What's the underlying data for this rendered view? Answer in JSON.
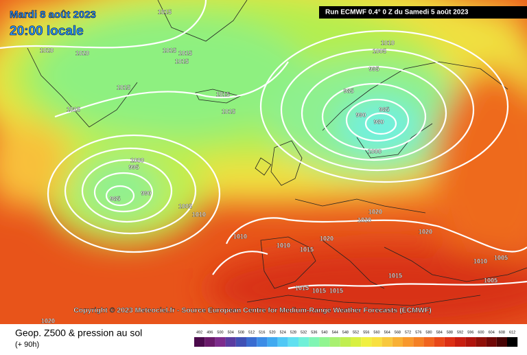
{
  "header": {
    "date": "Mardi 8 août 2023",
    "time": "20:00 locale",
    "run": "Run ECMWF 0.4° 0 Z du Samedi 5 août 2023"
  },
  "copyright": "Copyright © 2023 Meteociel.fr - Source European Centre for Medium-Range Weather Forecasts (ECMWF)",
  "footer": {
    "title": "Geop. Z500 & pression au sol",
    "lead": "(+ 90h)"
  },
  "isobar_labels": [
    1015,
    1020,
    1020,
    1015,
    1015,
    1015,
    1015,
    1015,
    1015,
    1015,
    1010,
    1005,
    995,
    985,
    985,
    990,
    980,
    1000,
    1000,
    995,
    990,
    985,
    1005,
    1010,
    1010,
    1010,
    1020,
    1015,
    1020,
    1020,
    1020,
    1010,
    1005,
    1015,
    1005,
    1015,
    1015,
    1015,
    1020
  ],
  "colorbar": {
    "ticks": [
      492,
      496,
      500,
      504,
      508,
      512,
      516,
      520,
      524,
      528,
      532,
      536,
      540,
      544,
      548,
      552,
      556,
      560,
      564,
      568,
      572,
      576,
      580,
      584,
      588,
      592,
      596,
      600,
      604,
      608,
      612
    ],
    "colors": [
      "#4b0a4b",
      "#6a1a6a",
      "#7d2c8c",
      "#5a3ca0",
      "#4050b4",
      "#3a6cd0",
      "#3c8ce6",
      "#40aaf0",
      "#50c8f5",
      "#60e0f0",
      "#70f0d8",
      "#80f5b4",
      "#90f590",
      "#a8f070",
      "#c0ee50",
      "#d8f040",
      "#f0f040",
      "#f8e040",
      "#f8c83c",
      "#f8b034",
      "#f8982c",
      "#f48024",
      "#f0641e",
      "#e84818",
      "#dc3014",
      "#c81e10",
      "#b0140c",
      "#901008",
      "#700806",
      "#480404",
      "#000000"
    ]
  }
}
